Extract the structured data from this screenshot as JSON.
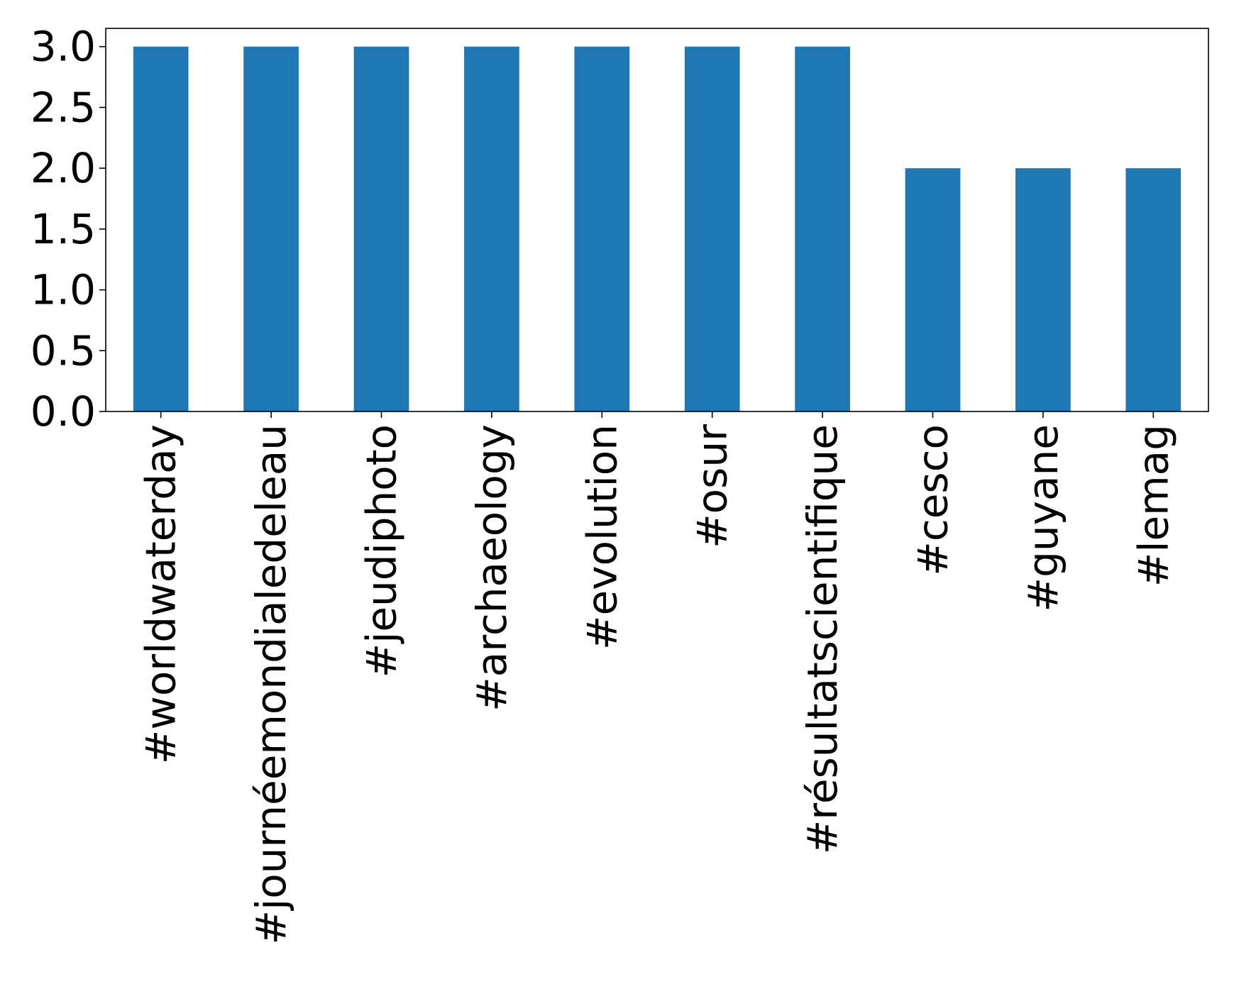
{
  "chart_data": {
    "type": "bar",
    "categories": [
      "#worldwaterday",
      "#journéemondialedeleau",
      "#jeudiphoto",
      "#archaeology",
      "#evolution",
      "#osur",
      "#résultatscientifique",
      "#cesco",
      "#guyane",
      "#lemag"
    ],
    "values": [
      3,
      3,
      3,
      3,
      3,
      3,
      3,
      2,
      2,
      2
    ],
    "title": "",
    "xlabel": "",
    "ylabel": "",
    "ylim": [
      0,
      3.15
    ],
    "yticks": [
      "0.0",
      "0.5",
      "1.0",
      "1.5",
      "2.0",
      "2.5",
      "3.0"
    ],
    "legend": "none",
    "grid": false,
    "colors": {
      "bar": "#1f77b4",
      "axis": "#000000",
      "background": "#ffffff"
    }
  }
}
